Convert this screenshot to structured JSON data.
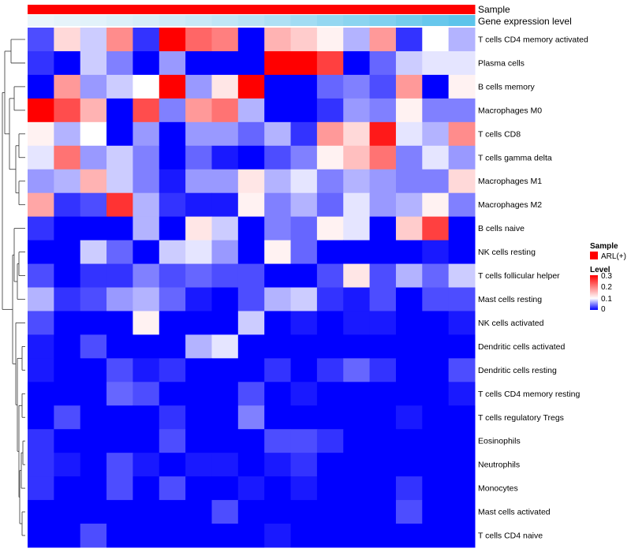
{
  "chart_data": {
    "type": "heatmap",
    "annotations": {
      "sample_label": "Sample",
      "gene_label": "Gene expression level"
    },
    "legend": {
      "sample_title": "Sample",
      "sample_entry": "ARL(+)",
      "sample_color": "#ff0000",
      "level_title": "Level",
      "level_ticks": [
        "0.3",
        "0.2",
        "0.1",
        "0"
      ],
      "level_tick_values": [
        0.3,
        0.2,
        0.1,
        0
      ]
    },
    "color_scale": {
      "min": 0,
      "mid": 0.1,
      "max": 0.3,
      "low": "#0000ff",
      "mid_color": "#ffffff",
      "high": "#ff0000"
    },
    "gene_expression": [
      0.02,
      0.05,
      0.08,
      0.12,
      0.15,
      0.2,
      0.25,
      0.3,
      0.35,
      0.42,
      0.5,
      0.58,
      0.65,
      0.72,
      0.8,
      0.88,
      0.95
    ],
    "gene_colors": {
      "low": "#eef6fb",
      "high": "#55c1ea"
    },
    "rows": [
      "T cells CD4 memory activated",
      "Plasma cells",
      "B cells memory",
      "Macrophages M0",
      "T cells CD8",
      "T cells gamma delta",
      "Macrophages M1",
      "Macrophages M2",
      "B cells naive",
      "NK cells resting",
      "T cells follicular helper",
      "Mast cells resting",
      "NK cells activated",
      "Dendritic cells activated",
      "Dendritic cells resting",
      "T cells CD4 memory resting",
      "T cells regulatory  Tregs",
      "Eosinophils",
      "Neutrophils",
      "Monocytes",
      "Mast cells activated",
      "T cells CD4 naive"
    ],
    "values": [
      [
        0.03,
        0.13,
        0.08,
        0.19,
        0.02,
        0.3,
        0.22,
        0.2,
        0.0,
        0.16,
        0.14,
        0.11,
        0.07,
        0.18,
        0.02,
        0.1,
        0.07
      ],
      [
        0.02,
        0.0,
        0.08,
        0.05,
        0.0,
        0.06,
        0.0,
        0.0,
        0.0,
        0.3,
        0.3,
        0.25,
        0.0,
        0.04,
        0.08,
        0.09,
        0.09
      ],
      [
        0.0,
        0.18,
        0.06,
        0.08,
        0.1,
        0.3,
        0.06,
        0.12,
        0.3,
        0.0,
        0.0,
        0.04,
        0.05,
        0.03,
        0.18,
        0.0,
        0.11
      ],
      [
        0.3,
        0.24,
        0.16,
        0.0,
        0.24,
        0.05,
        0.18,
        0.21,
        0.07,
        0.0,
        0.0,
        0.02,
        0.06,
        0.05,
        0.11,
        0.05,
        0.05
      ],
      [
        0.11,
        0.07,
        0.1,
        0.0,
        0.06,
        0.0,
        0.06,
        0.06,
        0.04,
        0.07,
        0.02,
        0.18,
        0.13,
        0.28,
        0.09,
        0.07,
        0.19
      ],
      [
        0.09,
        0.21,
        0.06,
        0.08,
        0.05,
        0.0,
        0.04,
        0.01,
        0.0,
        0.03,
        0.05,
        0.11,
        0.15,
        0.21,
        0.05,
        0.09,
        0.06
      ],
      [
        0.06,
        0.07,
        0.16,
        0.08,
        0.05,
        0.01,
        0.06,
        0.06,
        0.12,
        0.07,
        0.09,
        0.05,
        0.07,
        0.06,
        0.05,
        0.05,
        0.13
      ],
      [
        0.17,
        0.02,
        0.03,
        0.26,
        0.07,
        0.02,
        0.01,
        0.01,
        0.11,
        0.05,
        0.07,
        0.04,
        0.09,
        0.06,
        0.07,
        0.11,
        0.05
      ],
      [
        0.02,
        0.0,
        0.0,
        0.0,
        0.07,
        0.0,
        0.12,
        0.08,
        0.0,
        0.05,
        0.04,
        0.11,
        0.09,
        0.0,
        0.14,
        0.25,
        0.0
      ],
      [
        0.0,
        0.0,
        0.08,
        0.04,
        0.0,
        0.08,
        0.09,
        0.06,
        0.0,
        0.11,
        0.04,
        0.0,
        0.0,
        0.0,
        0.0,
        0.01,
        0.0
      ],
      [
        0.03,
        0.0,
        0.02,
        0.02,
        0.05,
        0.03,
        0.04,
        0.03,
        0.03,
        0.0,
        0.0,
        0.03,
        0.12,
        0.03,
        0.07,
        0.04,
        0.08
      ],
      [
        0.07,
        0.02,
        0.03,
        0.06,
        0.07,
        0.04,
        0.01,
        0.0,
        0.03,
        0.07,
        0.08,
        0.02,
        0.01,
        0.03,
        0.0,
        0.03,
        0.03
      ],
      [
        0.03,
        0.0,
        0.0,
        0.0,
        0.11,
        0.0,
        0.0,
        0.0,
        0.08,
        0.0,
        0.01,
        0.0,
        0.01,
        0.01,
        0.0,
        0.0,
        0.01
      ],
      [
        0.01,
        0.0,
        0.03,
        0.0,
        0.0,
        0.0,
        0.07,
        0.09,
        0.0,
        0.0,
        0.0,
        0.0,
        0.0,
        0.0,
        0.0,
        0.0,
        0.0
      ],
      [
        0.01,
        0.0,
        0.0,
        0.03,
        0.01,
        0.02,
        0.0,
        0.0,
        0.0,
        0.02,
        0.0,
        0.02,
        0.04,
        0.02,
        0.0,
        0.0,
        0.03
      ],
      [
        0.0,
        0.0,
        0.0,
        0.04,
        0.03,
        0.0,
        0.0,
        0.0,
        0.03,
        0.0,
        0.01,
        0.0,
        0.0,
        0.0,
        0.0,
        0.0,
        0.01
      ],
      [
        0.0,
        0.03,
        0.0,
        0.0,
        0.0,
        0.02,
        0.0,
        0.0,
        0.05,
        0.0,
        0.0,
        0.0,
        0.0,
        0.0,
        0.01,
        0.0,
        0.0
      ],
      [
        0.02,
        0.0,
        0.0,
        0.0,
        0.0,
        0.03,
        0.0,
        0.0,
        0.0,
        0.03,
        0.03,
        0.02,
        0.0,
        0.0,
        0.0,
        0.0,
        0.0
      ],
      [
        0.02,
        0.01,
        0.0,
        0.03,
        0.01,
        0.0,
        0.01,
        0.01,
        0.0,
        0.01,
        0.02,
        0.0,
        0.0,
        0.0,
        0.0,
        0.0,
        0.0
      ],
      [
        0.02,
        0.0,
        0.0,
        0.03,
        0.0,
        0.03,
        0.0,
        0.0,
        0.01,
        0.0,
        0.01,
        0.0,
        0.0,
        0.0,
        0.02,
        0.0,
        0.0
      ],
      [
        0.0,
        0.0,
        0.0,
        0.0,
        0.0,
        0.0,
        0.0,
        0.03,
        0.0,
        0.0,
        0.0,
        0.0,
        0.0,
        0.0,
        0.03,
        0.0,
        0.0
      ],
      [
        0.0,
        0.0,
        0.03,
        0.0,
        0.0,
        0.0,
        0.0,
        0.0,
        0.0,
        0.01,
        0.0,
        0.0,
        0.0,
        0.0,
        0.0,
        0.0,
        0.0
      ]
    ]
  }
}
